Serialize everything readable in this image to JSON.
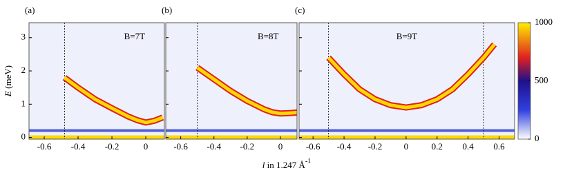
{
  "chart_data": [
    {
      "type": "line",
      "label": "(a)",
      "annotation": "B=7T",
      "ylabel": {
        "var": "E",
        "text": " (meV)"
      },
      "x": [
        -0.48,
        -0.4,
        -0.3,
        -0.2,
        -0.1,
        -0.05,
        0,
        0.05,
        0.1
      ],
      "values": [
        1.8,
        1.5,
        1.15,
        0.88,
        0.62,
        0.52,
        0.45,
        0.5,
        0.6
      ],
      "color": "#ffd800",
      "edge_color": "#e02020",
      "xlim": [
        -0.69,
        0.11
      ],
      "ylim": [
        -0.05,
        3.45
      ],
      "xticks": [
        -0.6,
        -0.4,
        -0.2,
        0
      ],
      "yticks": [
        0,
        1,
        2,
        3
      ],
      "markers": [
        -0.48
      ]
    },
    {
      "type": "line",
      "label": "(b)",
      "annotation": "B=8T",
      "xlabel": {
        "var": "l",
        "text": " in 1.247 Å",
        "sup": "-1"
      },
      "x": [
        -0.5,
        -0.4,
        -0.3,
        -0.2,
        -0.1,
        -0.05,
        0,
        0.05,
        0.1
      ],
      "values": [
        2.1,
        1.75,
        1.4,
        1.1,
        0.85,
        0.76,
        0.72,
        0.73,
        0.75
      ],
      "color": "#ffd800",
      "edge_color": "#e02020",
      "xlim": [
        -0.69,
        0.1
      ],
      "ylim": [
        -0.05,
        3.45
      ],
      "xticks": [
        -0.6,
        -0.4,
        -0.2,
        0
      ],
      "yticks": [
        0,
        1,
        2,
        3
      ],
      "markers": [
        -0.5
      ]
    },
    {
      "type": "line",
      "label": "(c)",
      "annotation": "B=9T",
      "x": [
        -0.5,
        -0.4,
        -0.3,
        -0.2,
        -0.1,
        0,
        0.1,
        0.2,
        0.3,
        0.4,
        0.5,
        0.57
      ],
      "values": [
        2.4,
        1.9,
        1.45,
        1.15,
        0.97,
        0.9,
        0.97,
        1.15,
        1.45,
        1.9,
        2.4,
        2.8
      ],
      "color": "#ffd800",
      "edge_color": "#e02020",
      "xlim": [
        -0.69,
        0.7
      ],
      "ylim": [
        -0.05,
        3.45
      ],
      "xticks": [
        -0.6,
        -0.4,
        -0.2,
        0,
        0.2,
        0.4,
        0.6
      ],
      "yticks": [
        0,
        1,
        2,
        3
      ],
      "markers": [
        -0.5,
        0.5
      ],
      "colorbar": {
        "lim": [
          0,
          1000
        ],
        "ticks": [
          0,
          500,
          1000
        ]
      }
    }
  ]
}
